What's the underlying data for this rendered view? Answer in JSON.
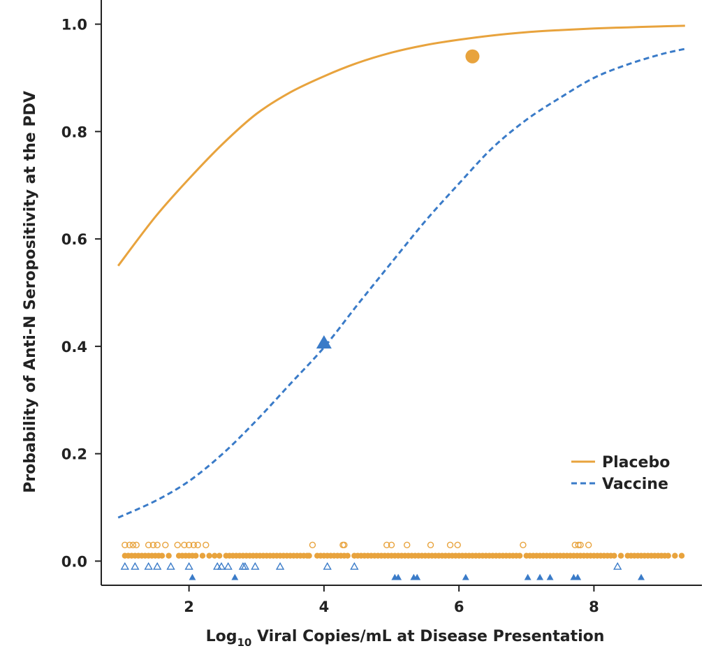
{
  "chart_data": {
    "type": "line",
    "xlabel_prefix": "Log",
    "xlabel_subscript": "10",
    "xlabel_suffix": " Viral Copies/mL at Disease Presentation",
    "ylabel": "Probability of Anti-N Seropositivity at the PDV",
    "xlim": [
      0.7,
      9.6
    ],
    "ylim": [
      -0.045,
      1.045
    ],
    "x_ticks": [
      2,
      4,
      6,
      8
    ],
    "y_ticks": [
      0.0,
      0.2,
      0.4,
      0.6,
      0.8,
      1.0
    ],
    "x_tick_labels": [
      "2",
      "4",
      "6",
      "8"
    ],
    "y_tick_labels": [
      "0.0",
      "0.2",
      "0.4",
      "0.6",
      "0.8",
      "1.0"
    ],
    "grid": false,
    "legend_position": "right, near bottom",
    "series": [
      {
        "name": "Placebo",
        "color": "#E8A33D",
        "style": "solid",
        "x": [
          0.95,
          1.5,
          2.0,
          2.5,
          3.0,
          3.5,
          4.0,
          4.5,
          5.0,
          5.5,
          6.0,
          6.5,
          7.0,
          7.5,
          8.0,
          8.5,
          9.0,
          9.35
        ],
        "y": [
          0.55,
          0.641,
          0.712,
          0.777,
          0.833,
          0.873,
          0.903,
          0.928,
          0.947,
          0.961,
          0.971,
          0.979,
          0.985,
          0.989,
          0.992,
          0.994,
          0.996,
          0.997
        ],
        "estimate_point": {
          "x": 6.2,
          "y": 0.94,
          "marker": "circle"
        },
        "positive_obs_x": [
          1.05,
          1.12,
          1.17,
          1.22,
          1.4,
          1.47,
          1.53,
          1.65,
          1.83,
          1.93,
          2.0,
          2.07,
          2.13,
          2.25,
          3.83,
          4.28,
          4.3,
          4.93,
          5.0,
          5.23,
          5.58,
          5.87,
          5.98,
          6.95,
          7.72,
          7.77,
          7.8,
          7.92
        ],
        "negative_obs_x": [
          1.05,
          1.1,
          1.15,
          1.2,
          1.25,
          1.3,
          1.35,
          1.4,
          1.45,
          1.5,
          1.55,
          1.6,
          1.7,
          1.85,
          1.9,
          1.95,
          2.0,
          2.05,
          2.1,
          2.2,
          2.3,
          2.38,
          2.45,
          2.55,
          2.6,
          2.65,
          2.7,
          2.75,
          2.8,
          2.85,
          2.9,
          2.95,
          3.0,
          3.05,
          3.1,
          3.15,
          3.2,
          3.25,
          3.3,
          3.35,
          3.4,
          3.45,
          3.5,
          3.55,
          3.6,
          3.65,
          3.7,
          3.75,
          3.78,
          3.9,
          3.95,
          4.0,
          4.05,
          4.1,
          4.15,
          4.2,
          4.25,
          4.3,
          4.35,
          4.45,
          4.5,
          4.55,
          4.6,
          4.65,
          4.7,
          4.75,
          4.8,
          4.85,
          4.9,
          4.95,
          5.0,
          5.05,
          5.1,
          5.15,
          5.2,
          5.25,
          5.3,
          5.35,
          5.4,
          5.45,
          5.5,
          5.55,
          5.6,
          5.65,
          5.7,
          5.75,
          5.8,
          5.85,
          5.9,
          5.95,
          6.0,
          6.05,
          6.1,
          6.15,
          6.2,
          6.25,
          6.3,
          6.35,
          6.4,
          6.45,
          6.5,
          6.55,
          6.6,
          6.65,
          6.7,
          6.75,
          6.8,
          6.85,
          6.9,
          7.0,
          7.05,
          7.1,
          7.15,
          7.2,
          7.25,
          7.3,
          7.35,
          7.4,
          7.45,
          7.5,
          7.55,
          7.6,
          7.65,
          7.7,
          7.75,
          7.8,
          7.85,
          7.9,
          7.95,
          8.0,
          8.05,
          8.1,
          8.15,
          8.2,
          8.25,
          8.3,
          8.4,
          8.5,
          8.55,
          8.6,
          8.65,
          8.7,
          8.75,
          8.8,
          8.85,
          8.9,
          8.95,
          9.0,
          9.05,
          9.1,
          9.2,
          9.3
        ]
      },
      {
        "name": "Vaccine",
        "color": "#3A7BC8",
        "style": "dashed",
        "x": [
          0.95,
          1.5,
          2.0,
          2.5,
          3.0,
          3.5,
          4.0,
          4.5,
          5.0,
          5.5,
          6.0,
          6.5,
          7.0,
          7.5,
          8.0,
          8.5,
          9.0,
          9.35
        ],
        "y": [
          0.081,
          0.112,
          0.149,
          0.2,
          0.262,
          0.33,
          0.398,
          0.478,
          0.556,
          0.633,
          0.703,
          0.77,
          0.822,
          0.863,
          0.9,
          0.925,
          0.944,
          0.954
        ],
        "estimate_point": {
          "x": 4.0,
          "y": 0.405,
          "marker": "triangle"
        },
        "negative_obs_x": [
          1.05,
          1.2,
          1.4,
          1.53,
          1.73,
          2.0,
          2.42,
          2.48,
          2.58,
          2.8,
          2.83,
          2.98,
          3.35,
          4.05,
          4.45,
          8.35
        ],
        "positive_obs_x": [
          2.05,
          2.68,
          5.05,
          5.1,
          5.33,
          5.38,
          6.1,
          7.02,
          7.2,
          7.35,
          7.7,
          7.76,
          8.7
        ]
      }
    ]
  }
}
